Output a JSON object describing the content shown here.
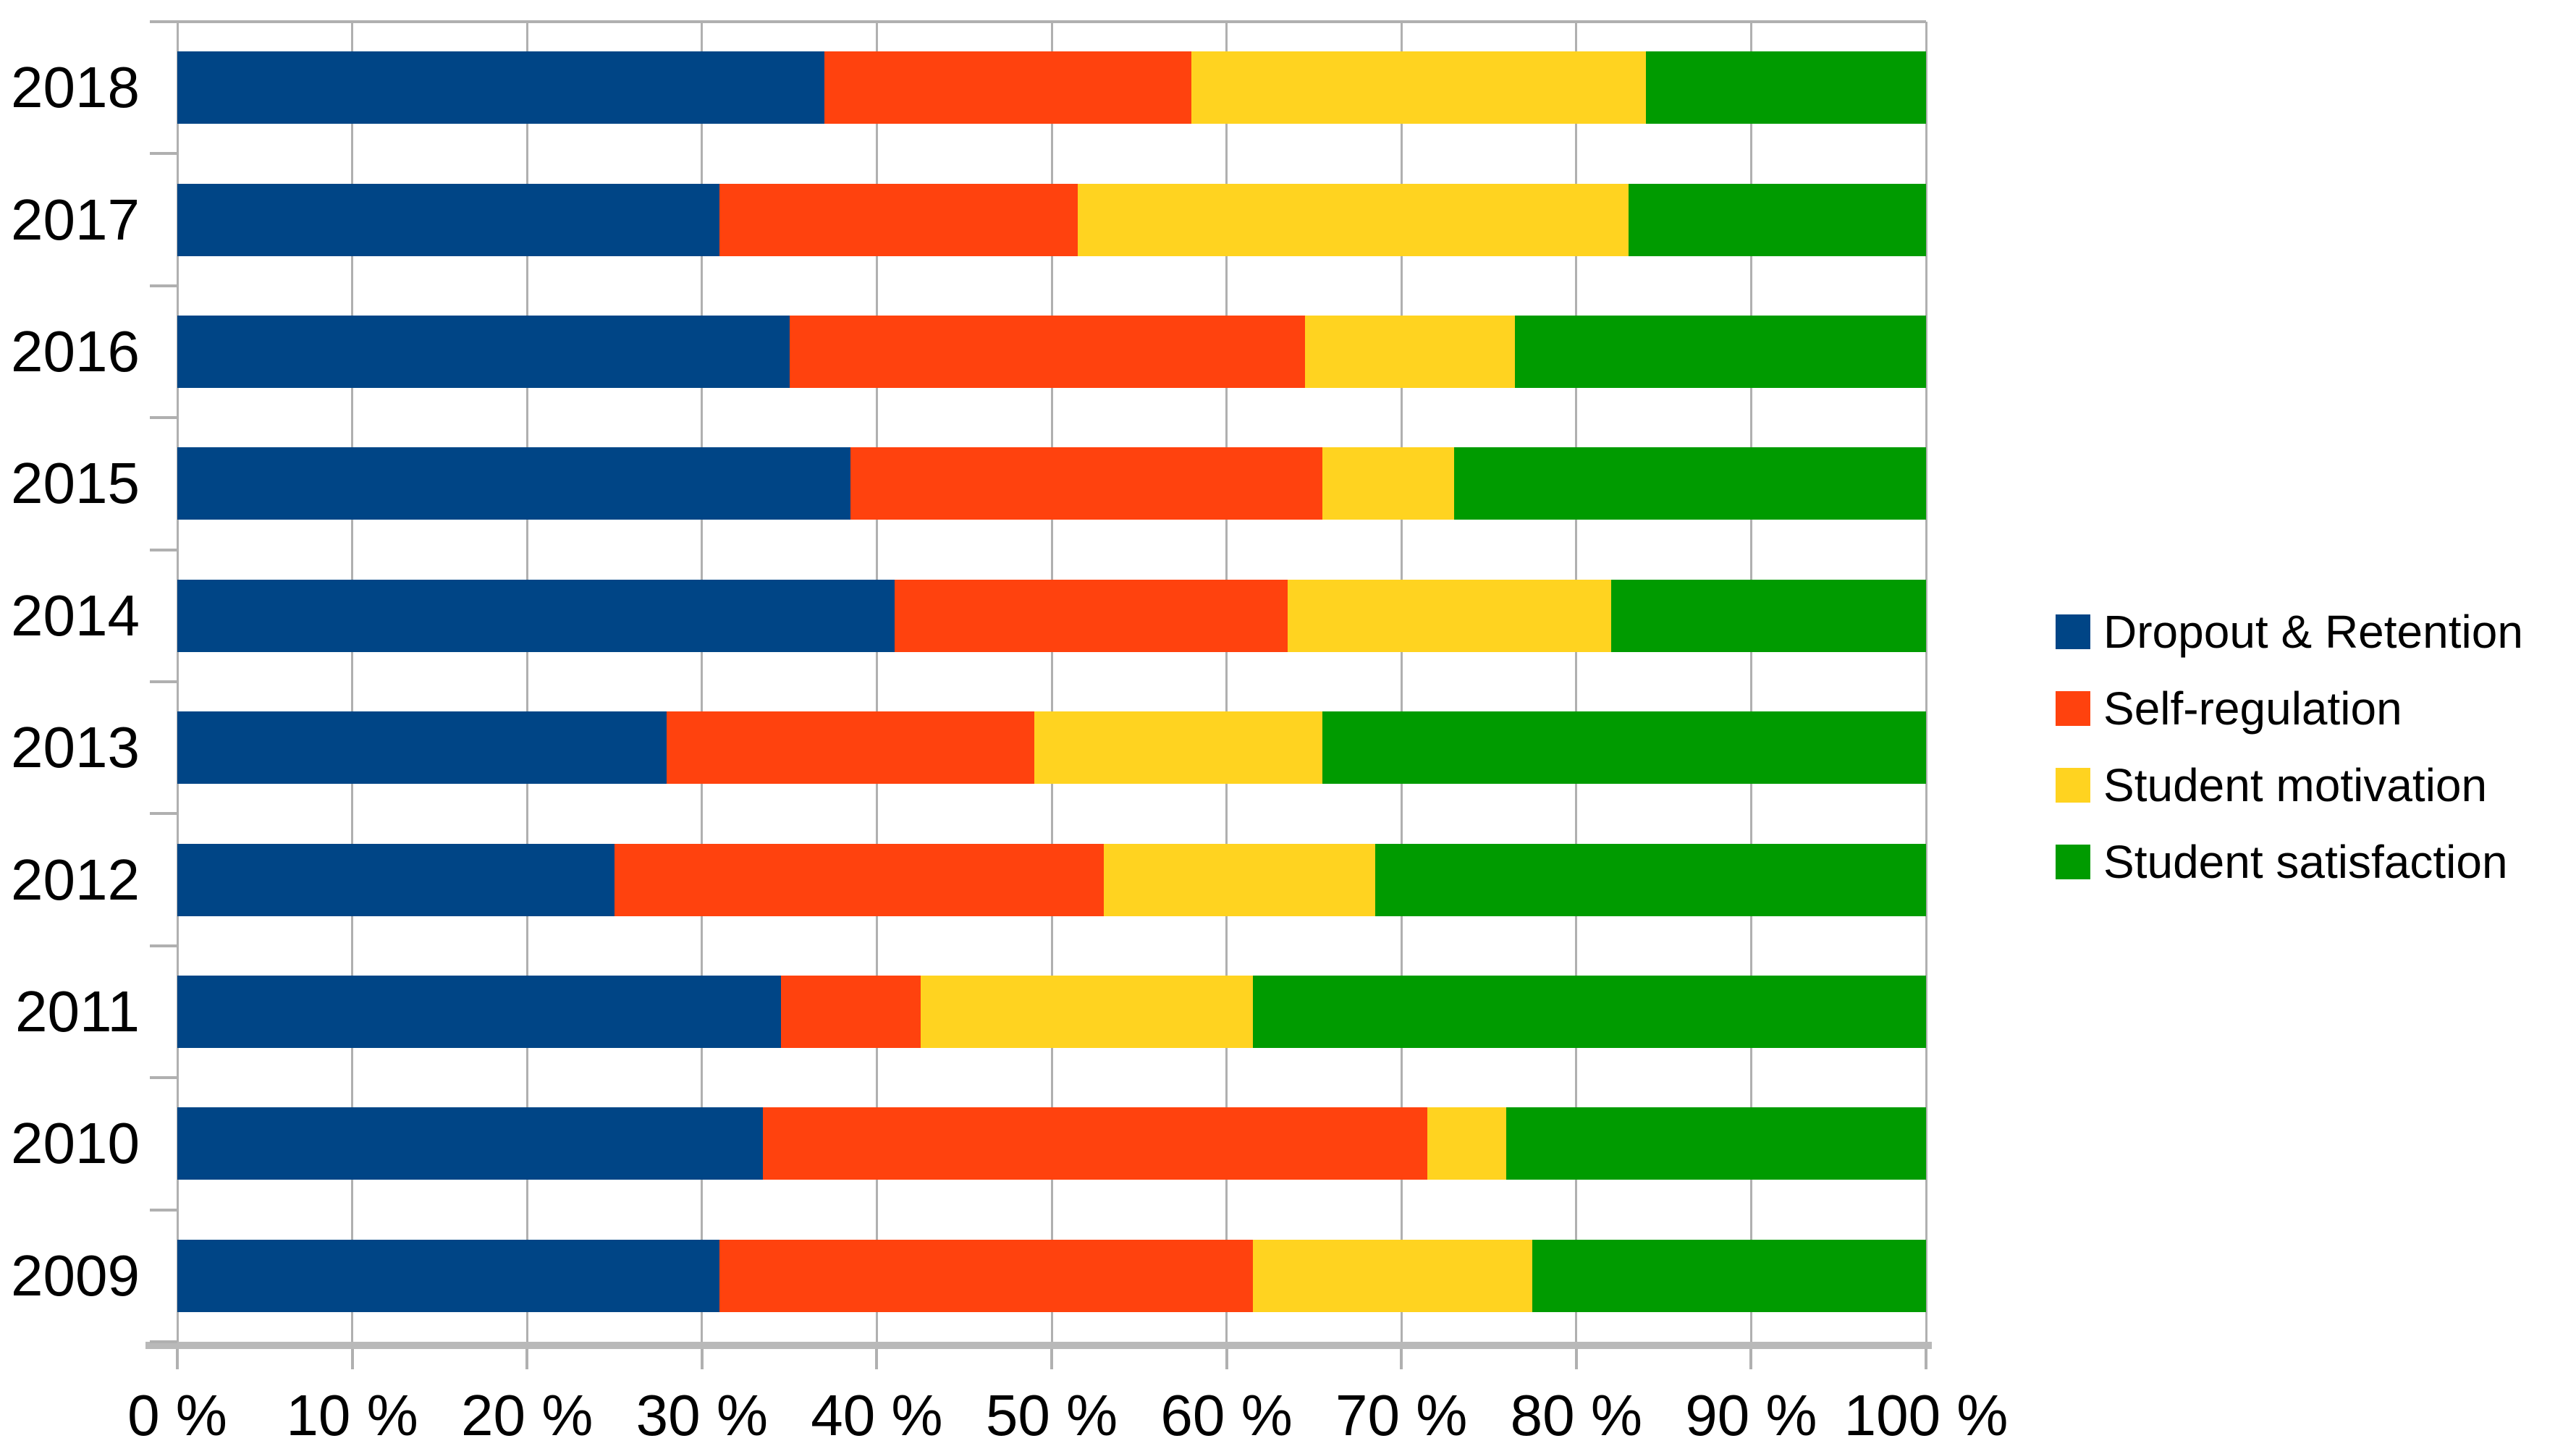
{
  "chart_data": {
    "type": "bar",
    "orientation": "horizontal",
    "stacked": true,
    "title": "",
    "unit": "%",
    "categories": [
      "2018",
      "2017",
      "2016",
      "2015",
      "2014",
      "2013",
      "2012",
      "2011",
      "2010",
      "2009"
    ],
    "series": [
      {
        "name": "Dropout & Retention",
        "color": "#004586",
        "values": [
          37,
          31,
          35,
          38.5,
          41,
          28,
          25,
          34.5,
          33.5,
          31
        ]
      },
      {
        "name": "Self-regulation",
        "color": "#FF420E",
        "values": [
          21,
          20.5,
          29.5,
          27,
          22.5,
          21,
          28,
          8,
          38,
          30.5
        ]
      },
      {
        "name": "Student motivation",
        "color": "#FFD320",
        "values": [
          26,
          31.5,
          12,
          7.5,
          18.5,
          16.5,
          15.5,
          19,
          4.5,
          16
        ]
      },
      {
        "name": "Student satisfaction",
        "color": "#009B00",
        "values": [
          16,
          17,
          23.5,
          27,
          18,
          34.5,
          31.5,
          38.5,
          24,
          22.5
        ]
      }
    ],
    "x_axis": {
      "min": 0,
      "max": 100,
      "tick_step": 10,
      "tick_labels": [
        "0 %",
        "10 %",
        "20 %",
        "30 %",
        "40 %",
        "50 %",
        "60 %",
        "70 %",
        "80 %",
        "90 %",
        "100 %"
      ]
    },
    "y_axis": {
      "labels": [
        "2018",
        "2017",
        "2016",
        "2015",
        "2014",
        "2013",
        "2012",
        "2011",
        "2010",
        "2009"
      ]
    },
    "legend": {
      "position": "right",
      "entries": [
        "Dropout & Retention",
        "Self-regulation",
        "Student motivation",
        "Student satisfaction"
      ]
    },
    "grid": "vertical-only"
  },
  "style": {
    "background": "#FFFFFF",
    "text_color": "#000000",
    "gridline_color": "#B0B0B0",
    "axis_line_color": "#B9B9B9"
  }
}
